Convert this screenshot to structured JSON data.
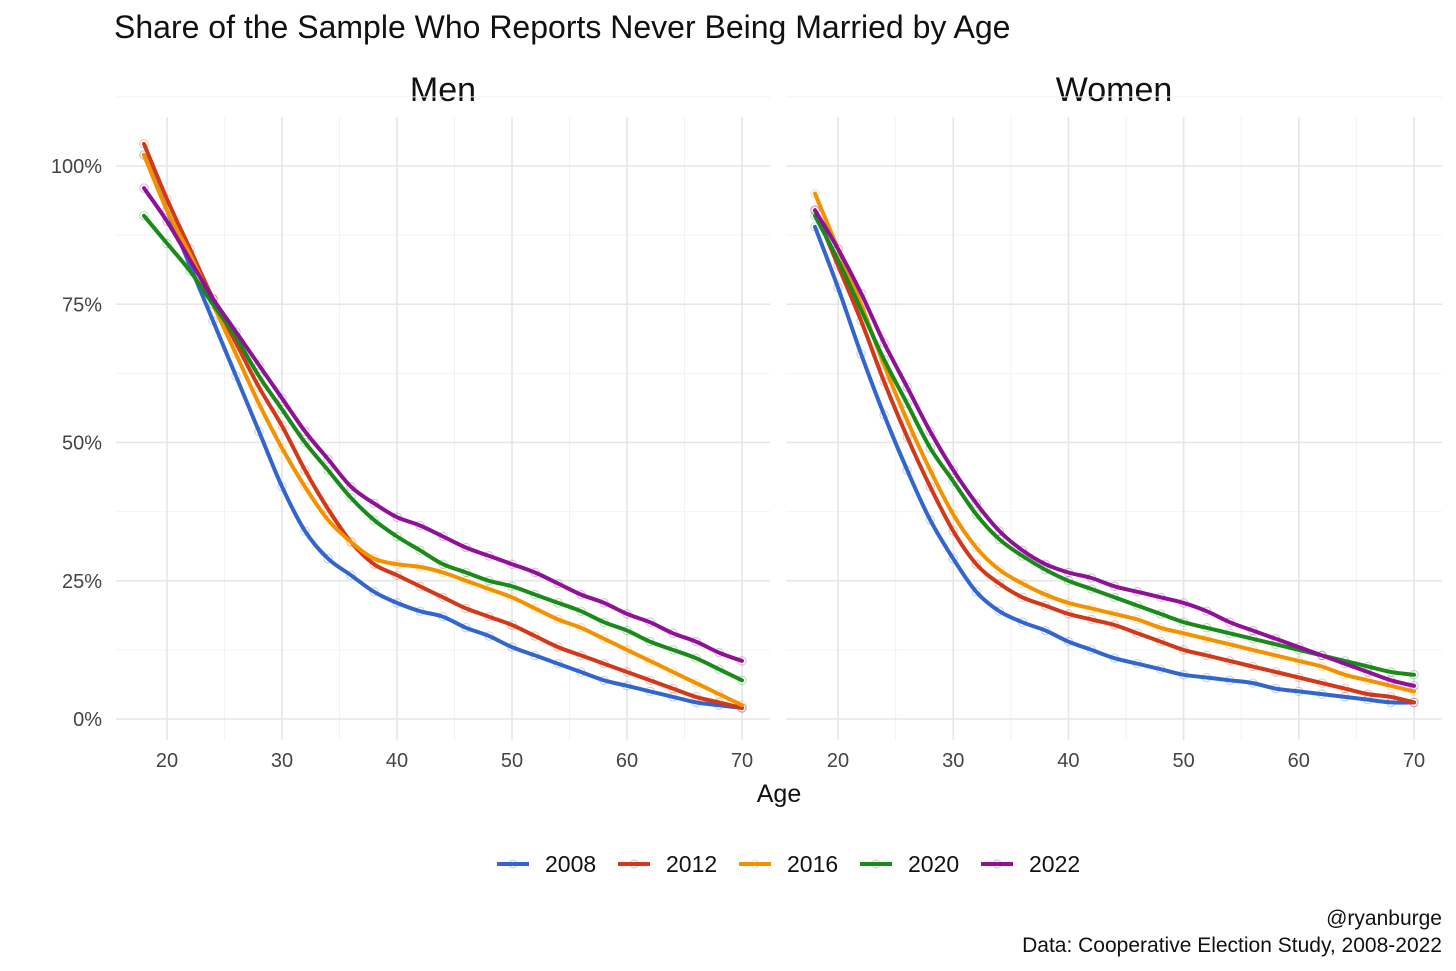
{
  "chart_data": {
    "type": "line",
    "title": "Share of the Sample Who Reports Never Being Married by Age",
    "xlabel": "Age",
    "ylabel": "",
    "xlim": [
      18,
      70
    ],
    "ylim": [
      0,
      1
    ],
    "x_ticks": [
      20,
      30,
      40,
      50,
      60,
      70
    ],
    "x_tick_labels": [
      "20",
      "30",
      "40",
      "50",
      "60",
      "70"
    ],
    "y_ticks": [
      0,
      0.25,
      0.5,
      0.75,
      1.0
    ],
    "y_tick_labels": [
      "0%",
      "25%",
      "50%",
      "75%",
      "100%"
    ],
    "grid": true,
    "legend_position": "bottom",
    "caption": [
      "@ryanburge",
      "Data: Cooperative Election Study, 2008-2022"
    ],
    "series_meta": [
      {
        "name": "2008",
        "color": "#3366cc"
      },
      {
        "name": "2012",
        "color": "#d0391a"
      },
      {
        "name": "2016",
        "color": "#f39200"
      },
      {
        "name": "2020",
        "color": "#1a8a1a"
      },
      {
        "name": "2022",
        "color": "#8e1198"
      }
    ],
    "panels": [
      {
        "title": "Men",
        "series": [
          {
            "name": "2008",
            "x": [
              18,
              20,
              22,
              24,
              26,
              28,
              30,
              32,
              34,
              36,
              38,
              40,
              42,
              44,
              46,
              48,
              50,
              52,
              54,
              56,
              58,
              60,
              62,
              64,
              66,
              68,
              70
            ],
            "y": [
              1.02,
              0.92,
              0.82,
              0.72,
              0.62,
              0.52,
              0.42,
              0.34,
              0.29,
              0.26,
              0.23,
              0.21,
              0.195,
              0.185,
              0.165,
              0.15,
              0.13,
              0.115,
              0.1,
              0.085,
              0.07,
              0.06,
              0.05,
              0.04,
              0.03,
              0.025,
              0.02
            ]
          },
          {
            "name": "2012",
            "x": [
              18,
              20,
              22,
              24,
              26,
              28,
              30,
              32,
              34,
              36,
              38,
              40,
              42,
              44,
              46,
              48,
              50,
              52,
              54,
              56,
              58,
              60,
              62,
              64,
              66,
              68,
              70
            ],
            "y": [
              1.04,
              0.94,
              0.85,
              0.76,
              0.68,
              0.6,
              0.53,
              0.45,
              0.38,
              0.32,
              0.28,
              0.26,
              0.24,
              0.22,
              0.2,
              0.185,
              0.17,
              0.15,
              0.13,
              0.115,
              0.1,
              0.085,
              0.07,
              0.055,
              0.04,
              0.03,
              0.02
            ]
          },
          {
            "name": "2016",
            "x": [
              18,
              20,
              22,
              24,
              26,
              28,
              30,
              32,
              34,
              36,
              38,
              40,
              42,
              44,
              46,
              48,
              50,
              52,
              54,
              56,
              58,
              60,
              62,
              64,
              66,
              68,
              70
            ],
            "y": [
              1.02,
              0.92,
              0.84,
              0.75,
              0.66,
              0.57,
              0.49,
              0.42,
              0.36,
              0.32,
              0.29,
              0.28,
              0.275,
              0.265,
              0.25,
              0.235,
              0.22,
              0.2,
              0.18,
              0.165,
              0.145,
              0.125,
              0.105,
              0.085,
              0.065,
              0.045,
              0.025
            ]
          },
          {
            "name": "2020",
            "x": [
              18,
              20,
              22,
              24,
              26,
              28,
              30,
              32,
              34,
              36,
              38,
              40,
              42,
              44,
              46,
              48,
              50,
              52,
              54,
              56,
              58,
              60,
              62,
              64,
              66,
              68,
              70
            ],
            "y": [
              0.91,
              0.86,
              0.81,
              0.75,
              0.69,
              0.62,
              0.56,
              0.5,
              0.45,
              0.4,
              0.36,
              0.33,
              0.305,
              0.28,
              0.265,
              0.25,
              0.24,
              0.225,
              0.21,
              0.195,
              0.175,
              0.16,
              0.14,
              0.125,
              0.11,
              0.09,
              0.07
            ]
          },
          {
            "name": "2022",
            "x": [
              18,
              20,
              22,
              24,
              26,
              28,
              30,
              32,
              34,
              36,
              38,
              40,
              42,
              44,
              46,
              48,
              50,
              52,
              54,
              56,
              58,
              60,
              62,
              64,
              66,
              68,
              70
            ],
            "y": [
              0.96,
              0.9,
              0.83,
              0.76,
              0.7,
              0.64,
              0.58,
              0.52,
              0.47,
              0.42,
              0.39,
              0.365,
              0.35,
              0.33,
              0.31,
              0.295,
              0.28,
              0.265,
              0.245,
              0.225,
              0.21,
              0.19,
              0.175,
              0.155,
              0.14,
              0.12,
              0.105
            ]
          }
        ]
      },
      {
        "title": "Women",
        "series": [
          {
            "name": "2008",
            "x": [
              18,
              20,
              22,
              24,
              26,
              28,
              30,
              32,
              34,
              36,
              38,
              40,
              42,
              44,
              46,
              48,
              50,
              52,
              54,
              56,
              58,
              60,
              62,
              64,
              66,
              68,
              70
            ],
            "y": [
              0.89,
              0.78,
              0.66,
              0.55,
              0.45,
              0.36,
              0.29,
              0.23,
              0.195,
              0.175,
              0.16,
              0.14,
              0.125,
              0.11,
              0.1,
              0.09,
              0.08,
              0.075,
              0.07,
              0.065,
              0.055,
              0.05,
              0.045,
              0.04,
              0.035,
              0.03,
              0.03
            ]
          },
          {
            "name": "2012",
            "x": [
              18,
              20,
              22,
              24,
              26,
              28,
              30,
              32,
              34,
              36,
              38,
              40,
              42,
              44,
              46,
              48,
              50,
              52,
              54,
              56,
              58,
              60,
              62,
              64,
              66,
              68,
              70
            ],
            "y": [
              0.92,
              0.82,
              0.72,
              0.61,
              0.51,
              0.42,
              0.34,
              0.28,
              0.245,
              0.22,
              0.205,
              0.19,
              0.18,
              0.17,
              0.155,
              0.14,
              0.125,
              0.115,
              0.105,
              0.095,
              0.085,
              0.075,
              0.065,
              0.055,
              0.045,
              0.04,
              0.03
            ]
          },
          {
            "name": "2016",
            "x": [
              18,
              20,
              22,
              24,
              26,
              28,
              30,
              32,
              34,
              36,
              38,
              40,
              42,
              44,
              46,
              48,
              50,
              52,
              54,
              56,
              58,
              60,
              62,
              64,
              66,
              68,
              70
            ],
            "y": [
              0.95,
              0.85,
              0.75,
              0.64,
              0.54,
              0.45,
              0.37,
              0.31,
              0.27,
              0.245,
              0.225,
              0.21,
              0.2,
              0.19,
              0.18,
              0.165,
              0.155,
              0.145,
              0.135,
              0.125,
              0.115,
              0.105,
              0.095,
              0.08,
              0.07,
              0.06,
              0.05
            ]
          },
          {
            "name": "2020",
            "x": [
              18,
              20,
              22,
              24,
              26,
              28,
              30,
              32,
              34,
              36,
              38,
              40,
              42,
              44,
              46,
              48,
              50,
              52,
              54,
              56,
              58,
              60,
              62,
              64,
              66,
              68,
              70
            ],
            "y": [
              0.91,
              0.83,
              0.74,
              0.65,
              0.57,
              0.49,
              0.43,
              0.37,
              0.325,
              0.295,
              0.27,
              0.25,
              0.235,
              0.22,
              0.205,
              0.19,
              0.175,
              0.165,
              0.155,
              0.145,
              0.135,
              0.125,
              0.115,
              0.105,
              0.095,
              0.085,
              0.08
            ]
          },
          {
            "name": "2022",
            "x": [
              18,
              20,
              22,
              24,
              26,
              28,
              30,
              32,
              34,
              36,
              38,
              40,
              42,
              44,
              46,
              48,
              50,
              52,
              54,
              56,
              58,
              60,
              62,
              64,
              66,
              68,
              70
            ],
            "y": [
              0.92,
              0.85,
              0.77,
              0.68,
              0.6,
              0.52,
              0.45,
              0.39,
              0.34,
              0.305,
              0.28,
              0.265,
              0.255,
              0.24,
              0.23,
              0.22,
              0.21,
              0.195,
              0.175,
              0.16,
              0.145,
              0.13,
              0.115,
              0.1,
              0.085,
              0.07,
              0.06
            ]
          }
        ]
      }
    ]
  }
}
